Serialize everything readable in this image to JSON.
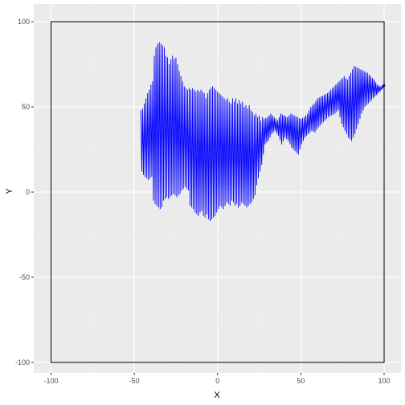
{
  "chart_data": {
    "type": "line",
    "title": "",
    "xlabel": "X",
    "ylabel": "Y",
    "xlim": [
      -100,
      100
    ],
    "ylim": [
      -100,
      100
    ],
    "x_ticks": [
      -100,
      -50,
      0,
      50,
      100
    ],
    "y_ticks": [
      -100,
      -50,
      0,
      50,
      100
    ],
    "x_tick_labels": [
      "-100",
      "-50",
      "0",
      "50",
      "100"
    ],
    "y_tick_labels": [
      "-100",
      "-50",
      "0",
      "50",
      "100"
    ],
    "grid": true,
    "legend": "none",
    "rectangle": {
      "x": [
        -100,
        100
      ],
      "y": [
        -100,
        100
      ]
    },
    "series": [
      {
        "color": "#0000ff",
        "note_points": "x,y pairs read from the plot",
        "x": [
          -46,
          -45,
          -44,
          -43,
          -42,
          -41,
          -40,
          -39,
          -38,
          -37,
          -36,
          -35,
          -34,
          -33,
          -32,
          -31,
          -30,
          -29,
          -28,
          -27,
          -26,
          -25,
          -24,
          -23,
          -22,
          -21,
          -20,
          -19,
          -18,
          -17,
          -16,
          -15,
          -14,
          -13,
          -12,
          -11,
          -10,
          -9,
          -8,
          -7,
          -6,
          -5,
          -4,
          -3,
          -2,
          -1,
          0,
          1,
          2,
          3,
          4,
          5,
          6,
          7,
          8,
          9,
          10,
          11,
          12,
          13,
          14,
          15,
          16,
          17,
          18,
          19,
          20,
          21,
          22,
          23,
          24,
          25,
          26,
          27,
          28,
          30,
          32,
          34,
          36,
          38,
          40,
          42,
          44,
          46,
          48,
          50,
          52,
          54,
          56,
          58,
          60,
          62,
          64,
          66,
          68,
          70,
          72,
          74,
          76,
          78,
          80,
          82,
          84,
          86,
          88,
          90,
          92,
          94,
          96,
          98,
          100
        ],
        "y_high": [
          48,
          49,
          52,
          55,
          58,
          60,
          63,
          65,
          80,
          85,
          87,
          88,
          87,
          86,
          85,
          80,
          79,
          75,
          78,
          80,
          78,
          79,
          75,
          71,
          68,
          65,
          62,
          61,
          60,
          61,
          60,
          61,
          60,
          59,
          60,
          59,
          60,
          59,
          58,
          55,
          58,
          60,
          61,
          62,
          61,
          60,
          59,
          58,
          57,
          56,
          55,
          54,
          55,
          53,
          52,
          55,
          53,
          55,
          52,
          54,
          52,
          53,
          50,
          51,
          49,
          51,
          48,
          47,
          45,
          46,
          44,
          45,
          42,
          44,
          43,
          44,
          46,
          44,
          42,
          46,
          45,
          44,
          46,
          45,
          44,
          43,
          44,
          46,
          50,
          52,
          55,
          56,
          57,
          58,
          60,
          62,
          64,
          66,
          68,
          66,
          70,
          74,
          73,
          72,
          71,
          70,
          68,
          66,
          63,
          62,
          64
        ],
        "y_low": [
          12,
          10,
          9,
          8,
          7,
          8,
          9,
          -5,
          -7,
          -8,
          -9,
          -10,
          -9,
          -5,
          -4,
          -3,
          -4,
          -3,
          -2,
          -1,
          -2,
          -3,
          -2,
          -1,
          1,
          2,
          3,
          2,
          1,
          -8,
          -9,
          -10,
          -12,
          -13,
          -14,
          -12,
          -11,
          -14,
          -15,
          -13,
          -16,
          -17,
          -16,
          -15,
          -14,
          -12,
          -10,
          -8,
          -9,
          -10,
          -8,
          -6,
          -7,
          -8,
          -5,
          -6,
          -8,
          -7,
          -9,
          -8,
          -6,
          -7,
          -8,
          -9,
          -8,
          -7,
          -6,
          -4,
          -2,
          4,
          8,
          12,
          16,
          22,
          28,
          30,
          34,
          36,
          33,
          28,
          32,
          30,
          26,
          24,
          22,
          28,
          32,
          34,
          36,
          35,
          38,
          40,
          42,
          44,
          45,
          46,
          48,
          40,
          36,
          32,
          30,
          34,
          40,
          46,
          50,
          52,
          54,
          56,
          58,
          60,
          62
        ]
      }
    ]
  }
}
